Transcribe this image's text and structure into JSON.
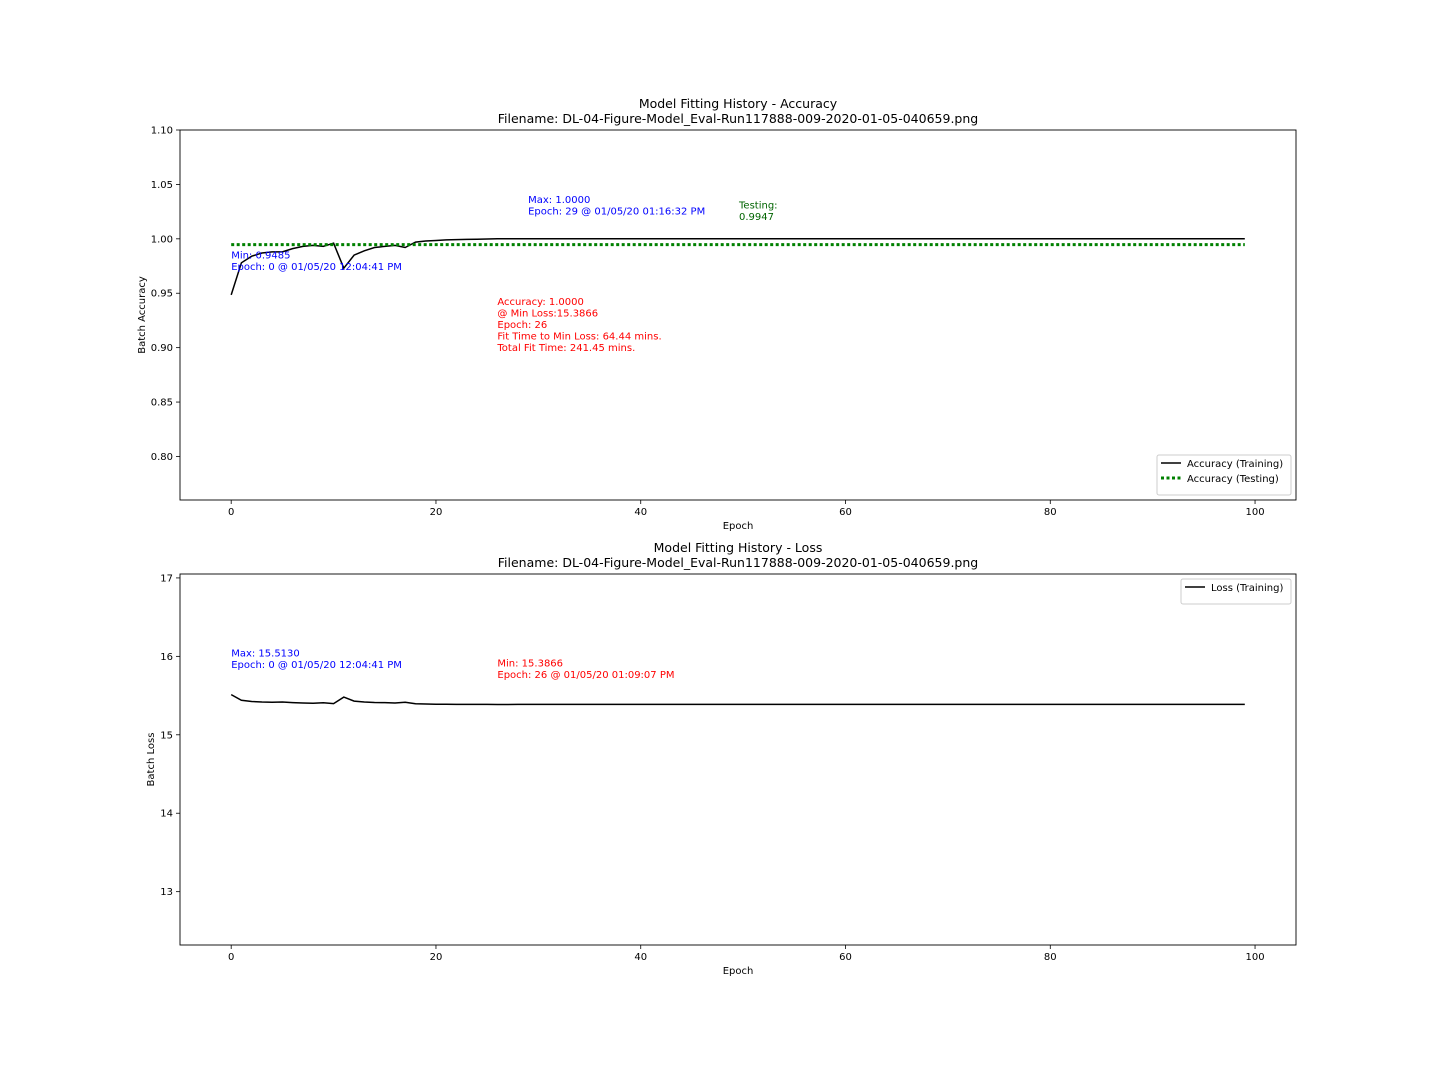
{
  "chart_data": [
    {
      "type": "line",
      "title": "Model Fitting History - Accuracy",
      "subtitle": "Filename: DL-04-Figure-Model_Eval-Run117888-009-2020-01-05-040659.png",
      "xlabel": "Epoch",
      "ylabel": "Batch Accuracy",
      "xlim": [
        -5,
        104
      ],
      "ylim": [
        0.76,
        1.1
      ],
      "xticks": [
        0,
        20,
        40,
        60,
        80,
        100
      ],
      "yticks": [
        0.8,
        0.85,
        0.9,
        0.95,
        1.0,
        1.05,
        1.1
      ],
      "ytick_decimals": 2,
      "grid": false,
      "legend_position": "lower-right",
      "series": [
        {
          "name": "Accuracy (Training)",
          "color": "#000000",
          "style": "solid",
          "x": [
            0,
            1,
            2,
            3,
            4,
            5,
            6,
            7,
            8,
            9,
            10,
            11,
            12,
            13,
            14,
            15,
            16,
            17,
            18,
            19,
            20,
            21,
            22,
            23,
            24,
            25,
            26,
            27,
            28,
            29,
            99
          ],
          "y": [
            0.9485,
            0.978,
            0.984,
            0.987,
            0.988,
            0.988,
            0.991,
            0.993,
            0.994,
            0.993,
            0.996,
            0.973,
            0.985,
            0.989,
            0.992,
            0.993,
            0.994,
            0.992,
            0.997,
            0.998,
            0.9985,
            0.999,
            0.9993,
            0.9995,
            0.9997,
            0.9998,
            1.0,
            1.0,
            1.0,
            1.0,
            1.0
          ]
        },
        {
          "name": "Accuracy (Testing)",
          "color": "#008000",
          "style": "dotted",
          "x": [
            0,
            99
          ],
          "y": [
            0.9947,
            0.9947
          ]
        }
      ],
      "annotations": [
        {
          "lines": [
            "Max: 1.0000",
            "Epoch: 29 @ 01/05/20 01:16:32 PM"
          ],
          "color": "#0000ff",
          "x": 29,
          "y": 1.033
        },
        {
          "lines": [
            "Testing:",
            "0.9947"
          ],
          "color": "#006400",
          "x": 49.6,
          "y": 1.028
        },
        {
          "lines": [
            "Min: 0.9485",
            "Epoch: 0 @ 01/05/20 12:04:41 PM"
          ],
          "color": "#0000ff",
          "x": 0,
          "y": 0.982
        },
        {
          "lines": [
            "Accuracy: 1.0000",
            "@ Min Loss:15.3866",
            "Epoch: 26",
            "Fit Time to Min Loss: 64.44 mins.",
            "Total Fit Time: 241.45 mins."
          ],
          "color": "#ff0000",
          "x": 26,
          "y": 0.939
        }
      ]
    },
    {
      "type": "line",
      "title": "Model Fitting History - Loss",
      "subtitle": "Filename: DL-04-Figure-Model_Eval-Run117888-009-2020-01-05-040659.png",
      "xlabel": "Epoch",
      "ylabel": "Batch Loss",
      "xlim": [
        -5,
        104
      ],
      "ylim": [
        12.32,
        17.05
      ],
      "xticks": [
        0,
        20,
        40,
        60,
        80,
        100
      ],
      "yticks": [
        13,
        14,
        15,
        16,
        17
      ],
      "ytick_decimals": 0,
      "grid": false,
      "legend_position": "upper-right",
      "series": [
        {
          "name": "Loss (Training)",
          "color": "#000000",
          "style": "solid",
          "x": [
            0,
            1,
            2,
            3,
            4,
            5,
            6,
            7,
            8,
            9,
            10,
            11,
            12,
            13,
            14,
            15,
            16,
            17,
            18,
            19,
            20,
            21,
            22,
            23,
            24,
            25,
            26,
            27,
            28,
            29,
            99
          ],
          "y": [
            15.513,
            15.44,
            15.425,
            15.418,
            15.415,
            15.418,
            15.41,
            15.405,
            15.402,
            15.408,
            15.398,
            15.48,
            15.43,
            15.418,
            15.412,
            15.41,
            15.405,
            15.415,
            15.395,
            15.392,
            15.39,
            15.389,
            15.388,
            15.388,
            15.3875,
            15.387,
            15.3866,
            15.3866,
            15.387,
            15.387,
            15.388
          ]
        }
      ],
      "annotations": [
        {
          "lines": [
            "Max: 15.5130",
            "Epoch: 0 @ 01/05/20 12:04:41 PM"
          ],
          "color": "#0000ff",
          "x": 0,
          "y": 16.0
        },
        {
          "lines": [
            "Min: 15.3866",
            "Epoch: 26 @ 01/05/20 01:09:07 PM"
          ],
          "color": "#ff0000",
          "x": 26,
          "y": 15.87
        }
      ]
    }
  ]
}
